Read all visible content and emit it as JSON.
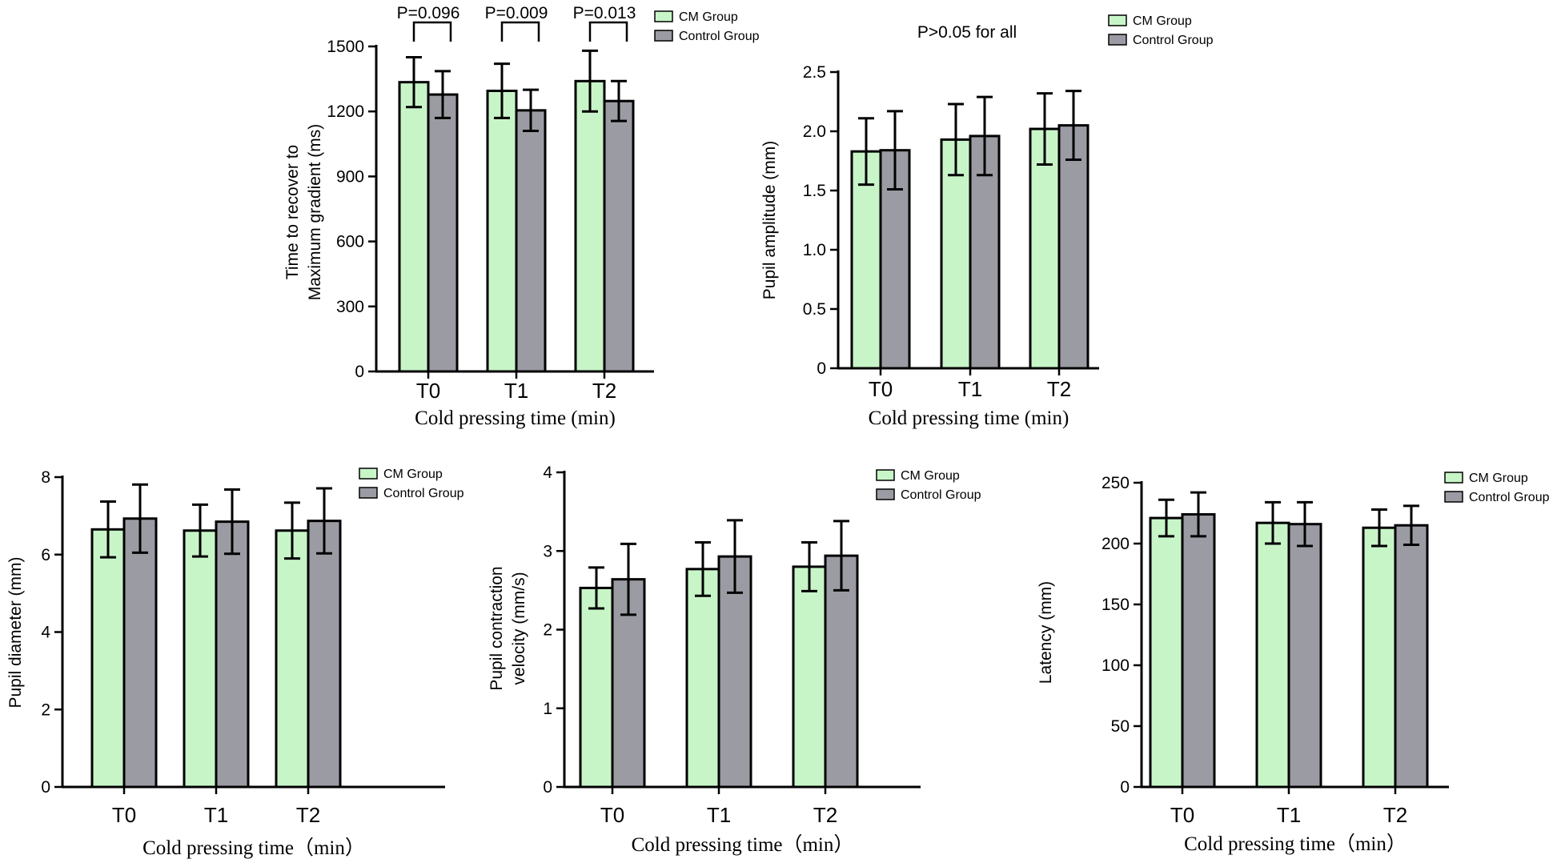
{
  "chart_data": [
    {
      "id": "recovery-time",
      "type": "bar",
      "title": "",
      "categories": [
        "T0",
        "T1",
        "T2"
      ],
      "series": [
        {
          "name": "CM Group",
          "color": "#c8f5c8",
          "values": [
            1335,
            1295,
            1340
          ],
          "errors": [
            115,
            125,
            140
          ]
        },
        {
          "name": "Control Group",
          "color": "#9b9ba3",
          "values": [
            1278,
            1205,
            1248
          ],
          "errors": [
            108,
            95,
            92
          ]
        }
      ],
      "xlabel": "Cold pressing time (min)",
      "ylabel_lines": [
        "Time to recover to",
        "Maximum gradient (ms)"
      ],
      "ylim": [
        0,
        1500
      ],
      "yticks": [
        "0",
        "300",
        "600",
        "900",
        "1200",
        "1500"
      ],
      "legend": [
        "CM Group",
        "Control Group"
      ],
      "legend_position": "top-right",
      "annotations": [
        "P=0.096",
        "P=0.009",
        "P=0.013"
      ]
    },
    {
      "id": "pupil-amplitude",
      "type": "bar",
      "title": "",
      "categories": [
        "T0",
        "T1",
        "T2"
      ],
      "series": [
        {
          "name": "CM Group",
          "color": "#c8f5c8",
          "values": [
            1.83,
            1.93,
            2.02
          ],
          "errors": [
            0.28,
            0.3,
            0.3
          ]
        },
        {
          "name": "Control Group",
          "color": "#9b9ba3",
          "values": [
            1.84,
            1.96,
            2.05
          ],
          "errors": [
            0.33,
            0.33,
            0.29
          ]
        }
      ],
      "xlabel": "Cold pressing time (min)",
      "ylabel_lines": [
        "Pupil amplitude (mm)"
      ],
      "ylim": [
        0,
        2.5
      ],
      "yticks": [
        "0",
        "0.5",
        "1.0",
        "1.5",
        "2.0",
        "2.5"
      ],
      "legend": [
        "CM Group",
        "Control Group"
      ],
      "legend_position": "top-right",
      "annotations": [
        "P>0.05 for all"
      ]
    },
    {
      "id": "pupil-diameter",
      "type": "bar",
      "title": "",
      "categories": [
        "T0",
        "T1",
        "T2"
      ],
      "series": [
        {
          "name": "CM Group",
          "color": "#c8f5c8",
          "values": [
            6.65,
            6.62,
            6.62
          ],
          "errors": [
            0.72,
            0.67,
            0.72
          ]
        },
        {
          "name": "Control Group",
          "color": "#9b9ba3",
          "values": [
            6.93,
            6.85,
            6.87
          ],
          "errors": [
            0.88,
            0.83,
            0.84
          ]
        }
      ],
      "xlabel": "Cold pressing time（min）",
      "ylabel_lines": [
        "Pupil diameter (mm)"
      ],
      "ylim": [
        0,
        8
      ],
      "yticks": [
        "0",
        "2",
        "4",
        "6",
        "8"
      ],
      "legend": [
        "CM Group",
        "Control Group"
      ],
      "legend_position": "top-right",
      "annotations": []
    },
    {
      "id": "contraction-velocity",
      "type": "bar",
      "title": "",
      "categories": [
        "T0",
        "T1",
        "T2"
      ],
      "series": [
        {
          "name": "CM Group",
          "color": "#c8f5c8",
          "values": [
            2.53,
            2.77,
            2.8
          ],
          "errors": [
            0.26,
            0.34,
            0.31
          ]
        },
        {
          "name": "Control Group",
          "color": "#9b9ba3",
          "values": [
            2.64,
            2.93,
            2.94
          ],
          "errors": [
            0.45,
            0.46,
            0.44
          ]
        }
      ],
      "xlabel": "Cold pressing time（min）",
      "ylabel_lines": [
        "Pupil contraction",
        "velocity (mm/s)"
      ],
      "ylim": [
        0,
        4
      ],
      "yticks": [
        "0",
        "1",
        "2",
        "3",
        "4"
      ],
      "legend": [
        "CM Group",
        "Control Group"
      ],
      "legend_position": "top-right",
      "annotations": []
    },
    {
      "id": "latency",
      "type": "bar",
      "title": "",
      "categories": [
        "T0",
        "T1",
        "T2"
      ],
      "series": [
        {
          "name": "CM Group",
          "color": "#c8f5c8",
          "values": [
            221,
            217,
            213
          ],
          "errors": [
            15,
            17,
            15
          ]
        },
        {
          "name": "Control Group",
          "color": "#9b9ba3",
          "values": [
            224,
            216,
            215
          ],
          "errors": [
            18,
            18,
            16
          ]
        }
      ],
      "xlabel": "Cold pressing time（min）",
      "ylabel_lines": [
        "Latency (mm)"
      ],
      "ylim": [
        0,
        250
      ],
      "yticks": [
        "0",
        "50",
        "100",
        "150",
        "200",
        "250"
      ],
      "legend": [
        "CM Group",
        "Control Group"
      ],
      "legend_position": "top-right",
      "annotations": []
    }
  ]
}
